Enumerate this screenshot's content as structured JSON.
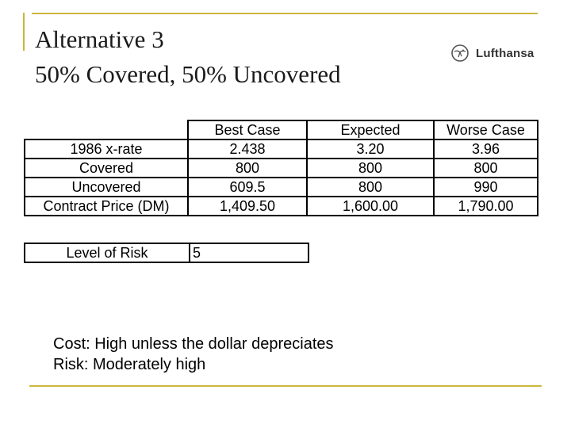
{
  "slide": {
    "title_line1": "Alternative 3",
    "title_line2": "50% Covered, 50% Uncovered",
    "logo": {
      "icon": "lufthansa-crane-icon",
      "text": "Lufthansa"
    }
  },
  "table": {
    "headers": [
      "Best Case",
      "Expected",
      "Worse Case"
    ],
    "rows": [
      {
        "label": "1986 x-rate",
        "values": [
          "2.438",
          "3.20",
          "3.96"
        ]
      },
      {
        "label": "Covered",
        "values": [
          "800",
          "800",
          "800"
        ]
      },
      {
        "label": "Uncovered",
        "values": [
          "609.5",
          "800",
          "990"
        ]
      },
      {
        "label": "Contract Price (DM)",
        "values": [
          "1,409.50",
          "1,600.00",
          "1,790.00"
        ]
      }
    ]
  },
  "risk": {
    "label": "Level of Risk",
    "value": "5"
  },
  "notes": {
    "cost": "Cost: High unless the dollar depreciates",
    "risk": "Risk: Moderately high"
  },
  "colors": {
    "accent_rule": "#c9b83c"
  }
}
